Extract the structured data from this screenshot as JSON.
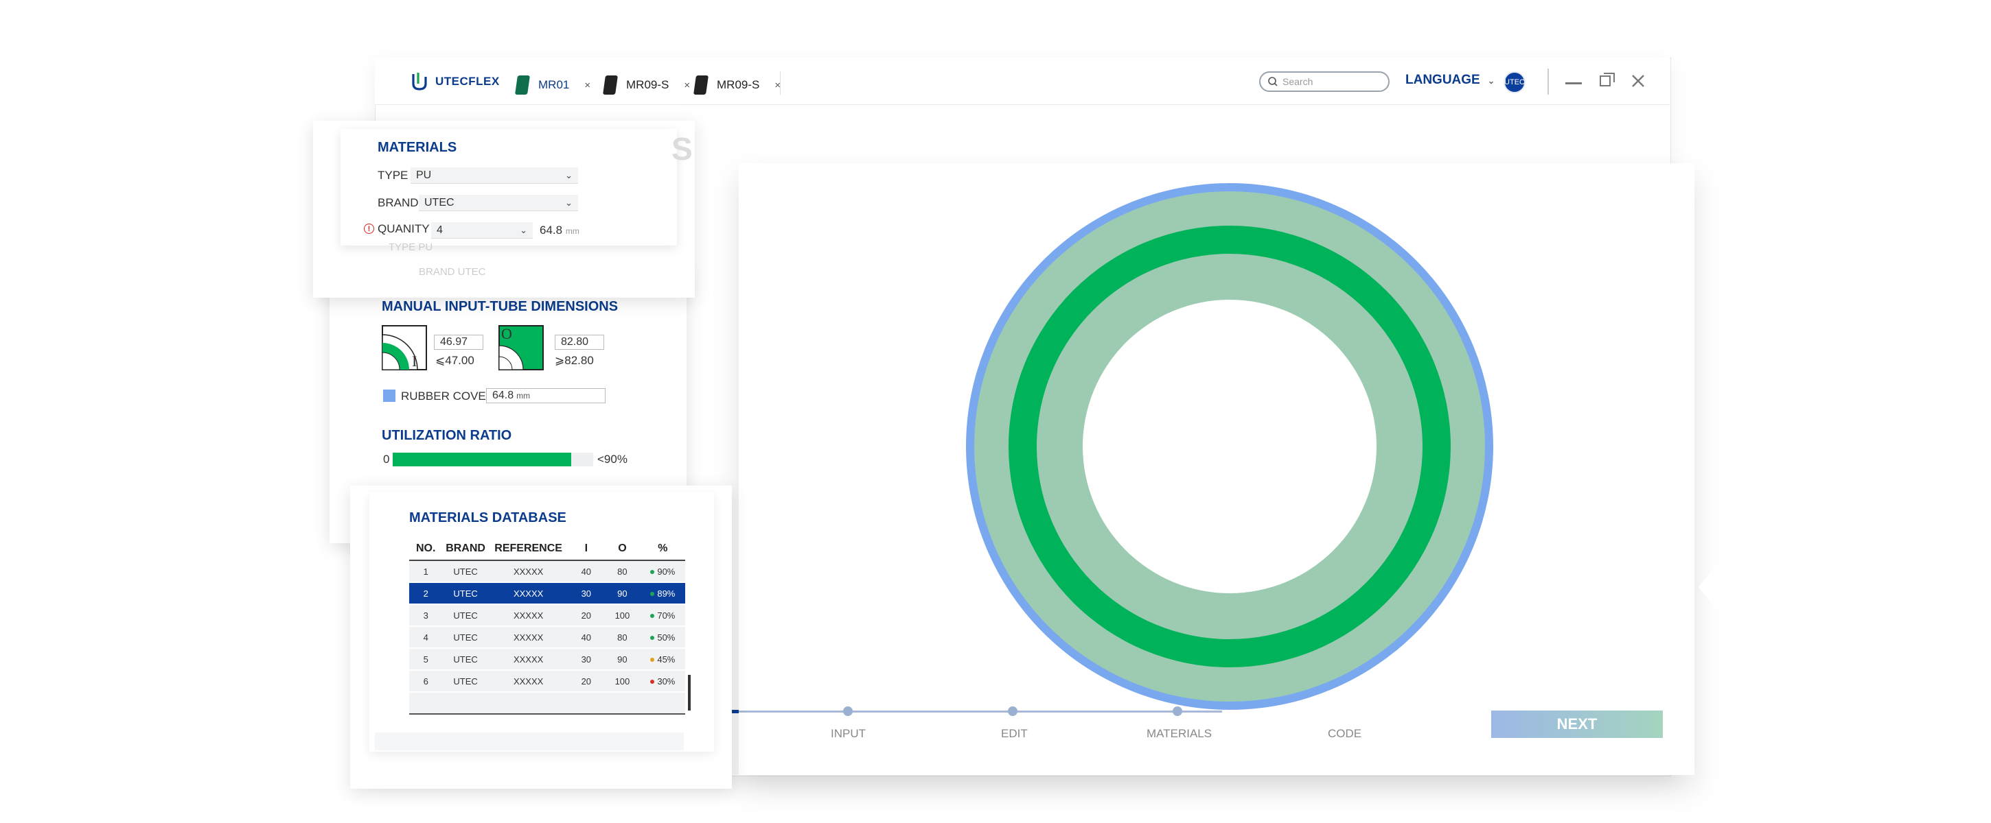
{
  "app": {
    "logo": "UTECFLEX"
  },
  "tabs": [
    {
      "label": "MR01",
      "color": "#0e6f4a"
    },
    {
      "label": "MR09-S",
      "color": "#222222"
    },
    {
      "label": "MR09-S",
      "color": "#222222"
    }
  ],
  "tab_close": "×",
  "header": {
    "search_placeholder": "Search",
    "language": "LANGUAGE",
    "avatar": "UTEC"
  },
  "materials": {
    "title": "MATERIALS",
    "type_label": "TYPE",
    "type_value": "PU",
    "brand_label": "BRAND",
    "brand_value": "UTEC",
    "quantity_label": "QUANITY",
    "quantity_value": "4",
    "quantity_measure": "64.8",
    "quantity_unit": "mm",
    "ghost_type": "TYPE PU",
    "ghost_brand": "BRAND UTEC"
  },
  "manual": {
    "title": "MANUAL INPUT-TUBE DIMENSIONS",
    "inner_letter": "I",
    "inner_value": "46.97",
    "inner_limit": "⩽47.00",
    "outer_letter": "O",
    "outer_value": "82.80",
    "outer_limit": "⩾82.80",
    "rubber_label": "RUBBER COVER",
    "rubber_value": "64.8",
    "rubber_unit": "mm"
  },
  "utilization": {
    "title": "UTILIZATION RATIO",
    "min": "0",
    "max": "<90%",
    "fill": 0.89
  },
  "database": {
    "title": "MATERIALS DATABASE",
    "columns": [
      "NO.",
      "BRAND",
      "REFERENCE",
      "I",
      "O",
      "%"
    ],
    "rows": [
      {
        "no": "1",
        "brand": "UTEC",
        "ref": "XXXXX",
        "i": "40",
        "o": "80",
        "pct": "90%",
        "dot": "#1aa653"
      },
      {
        "no": "2",
        "brand": "UTEC",
        "ref": "XXXXX",
        "i": "30",
        "o": "90",
        "pct": "89%",
        "dot": "#1aa653"
      },
      {
        "no": "3",
        "brand": "UTEC",
        "ref": "XXXXX",
        "i": "20",
        "o": "100",
        "pct": "70%",
        "dot": "#1aa653"
      },
      {
        "no": "4",
        "brand": "UTEC",
        "ref": "XXXXX",
        "i": "40",
        "o": "80",
        "pct": "50%",
        "dot": "#1aa653"
      },
      {
        "no": "5",
        "brand": "UTEC",
        "ref": "XXXXX",
        "i": "30",
        "o": "90",
        "pct": "45%",
        "dot": "#e2a11b"
      },
      {
        "no": "6",
        "brand": "UTEC",
        "ref": "XXXXX",
        "i": "20",
        "o": "100",
        "pct": "30%",
        "dot": "#d93025"
      }
    ],
    "selected_row": 1
  },
  "steps": [
    "INPUT",
    "EDIT",
    "MATERIALS",
    "CODE"
  ],
  "next_label": "NEXT",
  "colors": {
    "brand": "#0b3b8c",
    "green": "#00b259",
    "light_green": "#9ccbb2",
    "cover_blue": "#7aa8ef"
  }
}
